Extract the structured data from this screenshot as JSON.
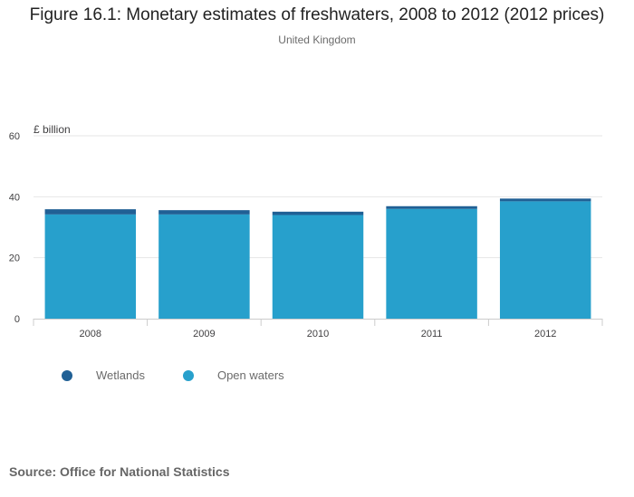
{
  "chart_data": {
    "type": "bar",
    "stacked": true,
    "title": "Figure 16.1: Monetary estimates of freshwaters, 2008 to 2012 (2012 prices)",
    "subtitle": "United Kingdom",
    "ylabel": "£ billion",
    "xlabel": "",
    "ylim": [
      0,
      60
    ],
    "yticks": [
      0,
      20,
      40,
      60
    ],
    "categories": [
      "2008",
      "2009",
      "2010",
      "2011",
      "2012"
    ],
    "series": [
      {
        "name": "Open waters",
        "color": "#27a0cc",
        "values": [
          34.2,
          34.2,
          34.0,
          36.0,
          38.5
        ]
      },
      {
        "name": "Wetlands",
        "color": "#206095",
        "values": [
          1.7,
          1.4,
          1.1,
          0.9,
          0.9
        ]
      }
    ],
    "legend": [
      "Wetlands",
      "Open waters"
    ],
    "grid": true,
    "legend_position": "bottom-left"
  },
  "source": "Source: Office for National Statistics"
}
